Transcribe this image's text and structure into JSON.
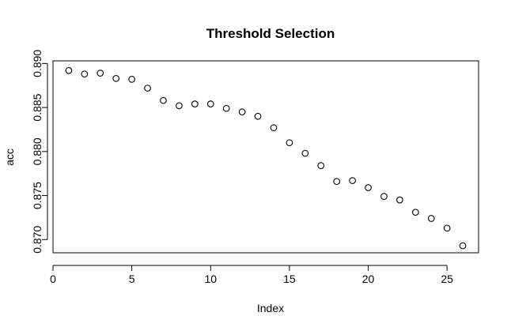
{
  "chart_data": {
    "type": "scatter",
    "title": "Threshold Selection",
    "xlabel": "Index",
    "ylabel": "acc",
    "xlim": [
      0,
      27
    ],
    "ylim": [
      0.8685,
      0.8903
    ],
    "x_ticks": [
      0,
      5,
      10,
      15,
      20,
      25
    ],
    "x_tick_labels": [
      "0",
      "5",
      "10",
      "15",
      "20",
      "25"
    ],
    "y_ticks": [
      0.87,
      0.875,
      0.88,
      0.885,
      0.89
    ],
    "y_tick_labels": [
      "0.870",
      "0.875",
      "0.880",
      "0.885",
      "0.890"
    ],
    "grid": false,
    "legend": "none",
    "marker": "open-circle",
    "color": "#000000",
    "x": [
      1,
      2,
      3,
      4,
      5,
      6,
      7,
      8,
      9,
      10,
      11,
      12,
      13,
      14,
      15,
      16,
      17,
      18,
      19,
      20,
      21,
      22,
      23,
      24,
      25,
      26
    ],
    "y": [
      0.8892,
      0.8888,
      0.8889,
      0.8883,
      0.8882,
      0.8872,
      0.8858,
      0.8852,
      0.8854,
      0.8854,
      0.8849,
      0.8845,
      0.884,
      0.8827,
      0.881,
      0.8798,
      0.8784,
      0.8766,
      0.8767,
      0.8759,
      0.8749,
      0.8745,
      0.8731,
      0.8724,
      0.8713,
      0.8693
    ]
  }
}
